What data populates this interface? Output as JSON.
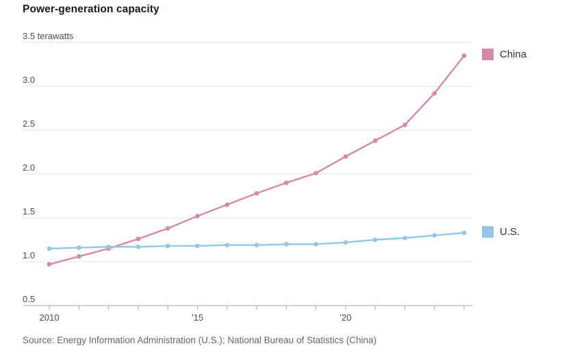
{
  "chart": {
    "title": "Power-generation capacity",
    "source": "Source: Energy Information Administration (U.S.); National Bureau of Statistics (China)",
    "legend": [
      {
        "label": "China",
        "color": "#d688a8"
      },
      {
        "label": "U.S.",
        "color": "#94c6e9"
      }
    ]
  },
  "chart_data": {
    "type": "line",
    "title": "Power-generation capacity",
    "ylabel": "terawatts",
    "x": [
      2010,
      2011,
      2012,
      2013,
      2014,
      2015,
      2016,
      2017,
      2018,
      2019,
      2020,
      2021,
      2022,
      2023,
      2024
    ],
    "series": [
      {
        "name": "China",
        "color": "#d688a8",
        "values": [
          0.97,
          1.06,
          1.15,
          1.26,
          1.38,
          1.52,
          1.65,
          1.78,
          1.9,
          2.01,
          2.2,
          2.38,
          2.56,
          2.92,
          3.35
        ]
      },
      {
        "name": "U.S.",
        "color": "#94c6e9",
        "values": [
          1.15,
          1.16,
          1.17,
          1.17,
          1.18,
          1.18,
          1.19,
          1.19,
          1.2,
          1.2,
          1.22,
          1.25,
          1.27,
          1.3,
          1.33
        ]
      }
    ],
    "ylim": [
      0.5,
      3.5
    ],
    "yticks": [
      3.5,
      3.0,
      2.5,
      2.0,
      1.5,
      1.0,
      0.5
    ],
    "ytick_labels": [
      "3.5 terawatts",
      "3.0",
      "2.5",
      "2.0",
      "1.5",
      "1.0",
      "0.5"
    ],
    "xtick_years_with_marks": [
      2010,
      2011,
      2012,
      2013,
      2014,
      2015,
      2016,
      2017,
      2018,
      2019,
      2020,
      2021,
      2022,
      2023,
      2024
    ],
    "xticks_labeled": [
      {
        "x": 2010,
        "label": "2010"
      },
      {
        "x": 2015,
        "label": "’15"
      },
      {
        "x": 2020,
        "label": "’20"
      }
    ],
    "grid": "horizontal",
    "legend_position": "right-of-line-ends",
    "colors": {
      "gridline": "#e7e7e7",
      "axis": "#a6a6a6",
      "tick_label": "#4d4d4d"
    }
  }
}
